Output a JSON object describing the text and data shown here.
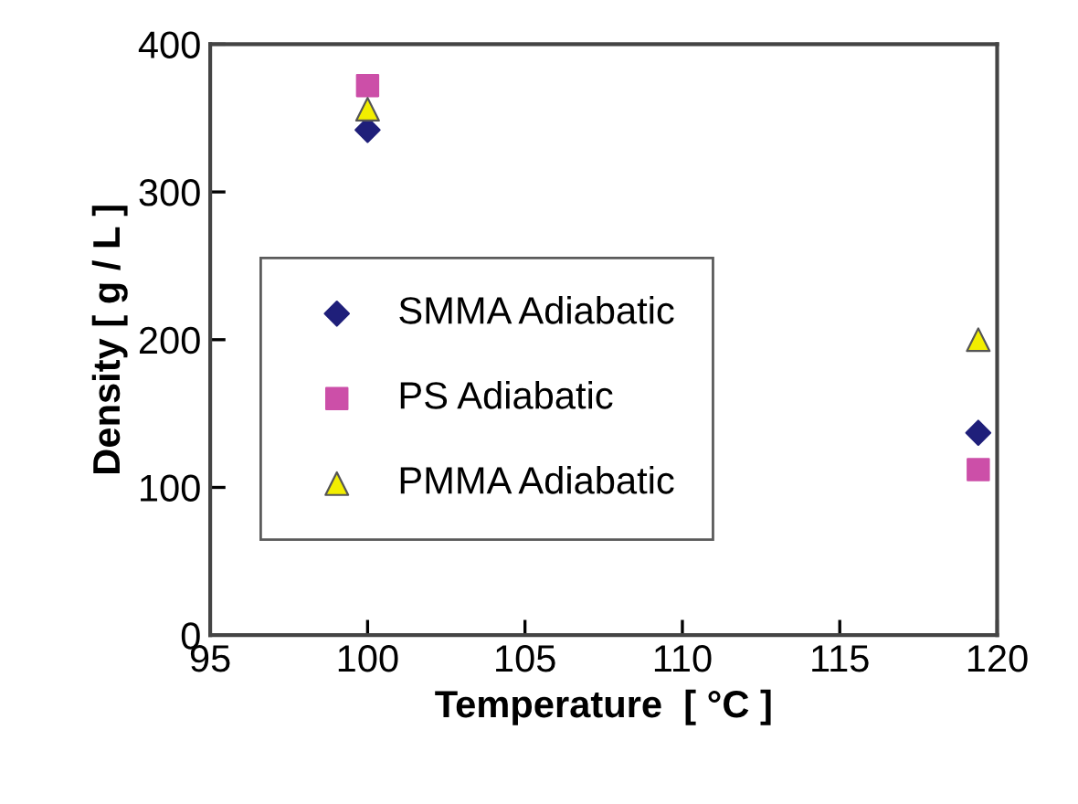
{
  "chart_data": {
    "type": "scatter",
    "xlabel": "Temperature  [ °C ]",
    "ylabel": "Density [ g / L ]",
    "x": [
      100,
      119.4
    ],
    "series": [
      {
        "name": "SMMA Adiabatic",
        "color": "#1f1f7a",
        "marker": "diamond",
        "values": [
          342,
          137
        ]
      },
      {
        "name": "PS Adiabatic",
        "color": "#cc4fa8",
        "marker": "square",
        "values": [
          372,
          112
        ]
      },
      {
        "name": "PMMA Adiabatic",
        "color": "#f2ee00",
        "marker": "triangle",
        "values": [
          356,
          200
        ]
      }
    ],
    "xlim": [
      95,
      120
    ],
    "xticks": [
      95,
      100,
      105,
      110,
      115,
      120
    ],
    "ylim": [
      0,
      400
    ],
    "yticks": [
      0,
      100,
      200,
      300,
      400
    ],
    "grid": false,
    "legend": "left"
  }
}
